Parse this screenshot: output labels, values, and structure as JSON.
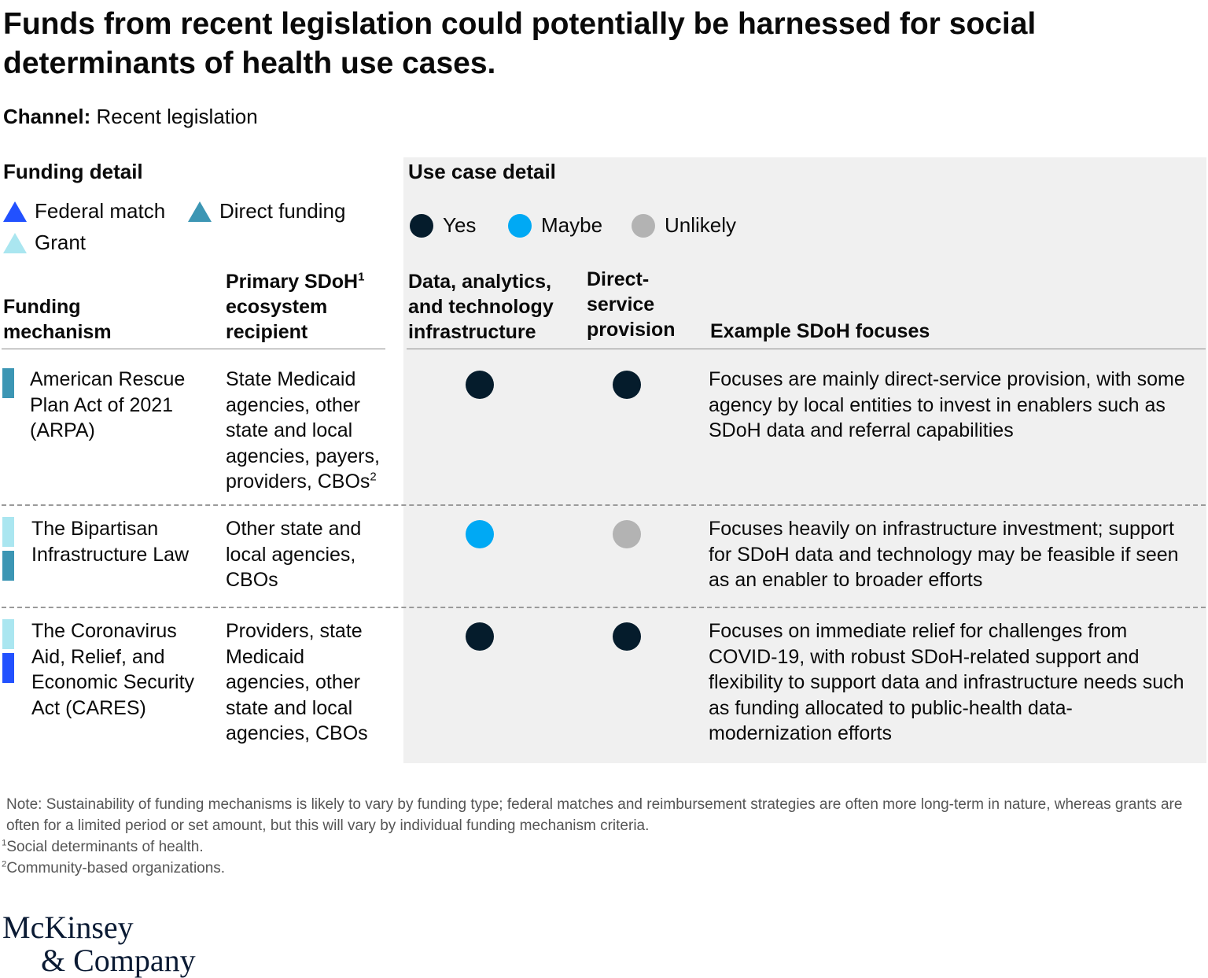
{
  "title": "Funds from recent legislation could potentially be harnessed for social determinants of health use cases.",
  "channel": {
    "label": "Channel:",
    "value": "Recent legislation"
  },
  "funding_detail": {
    "heading": "Funding detail",
    "legend": [
      {
        "label": "Federal match",
        "color": "#2251ff"
      },
      {
        "label": "Direct funding",
        "color": "#3c96b4"
      },
      {
        "label": "Grant",
        "color": "#aae6f0"
      }
    ]
  },
  "use_case_detail": {
    "heading": "Use case detail",
    "legend": [
      {
        "label": "Yes",
        "color": "#051c2c"
      },
      {
        "label": "Maybe",
        "color": "#00a9f4"
      },
      {
        "label": "Unlikely",
        "color": "#b3b3b3"
      }
    ]
  },
  "columns": {
    "mechanism": "Funding mechanism",
    "recipient": "Primary SDoH",
    "recipient_sup": "1",
    "recipient_rest": "ecosystem recipient",
    "data_infra": "Data, analytics, and technology infrastructure",
    "direct_service": "Direct-service provision",
    "focuses": "Example SDoH focuses"
  },
  "rows": [
    {
      "mechanism": "American Rescue Plan Act of 2021 (ARPA)",
      "funding_types": [
        "Direct funding"
      ],
      "recipient": "State Medicaid agencies, other state and local agencies, payers, providers, CBOs",
      "recipient_sup": "2",
      "data_infra": "Yes",
      "direct_service": "Yes",
      "focuses": "Focuses are mainly direct-service provision, with some agency by local entities to invest in enablers such as SDoH data and referral capabilities"
    },
    {
      "mechanism": "The Bipartisan Infrastructure Law",
      "funding_types": [
        "Grant",
        "Direct funding"
      ],
      "recipient": "Other state and local agencies, CBOs",
      "data_infra": "Maybe",
      "direct_service": "Unlikely",
      "focuses": "Focuses heavily on infrastructure investment; support for SDoH data and technology may be feasible if seen as an enabler to broader efforts"
    },
    {
      "mechanism": "The Coronavirus Aid, Relief, and Economic Security Act (CARES)",
      "funding_types": [
        "Grant",
        "Federal match"
      ],
      "recipient": "Providers, state Medicaid agencies, other state and local agencies, CBOs",
      "data_infra": "Yes",
      "direct_service": "Yes",
      "focuses": "Focuses on immediate relief for challenges from COVID-19, with robust SDoH-related support and flexibility to support data and infrastructure needs such as funding allocated to public-health data-modernization efforts"
    }
  ],
  "notes": {
    "note": "Note: Sustainability of funding mechanisms is likely to vary by funding type; federal matches and reimbursement strategies are often more long-term in nature, whereas grants are often for a limited period or set amount, but this will vary by individual funding mechanism criteria.",
    "fn1_mark": "1",
    "fn1": "Social determinants of health.",
    "fn2_mark": "2",
    "fn2": "Community-based organizations."
  },
  "logo": {
    "line1": "McKinsey",
    "line2": "& Company"
  }
}
